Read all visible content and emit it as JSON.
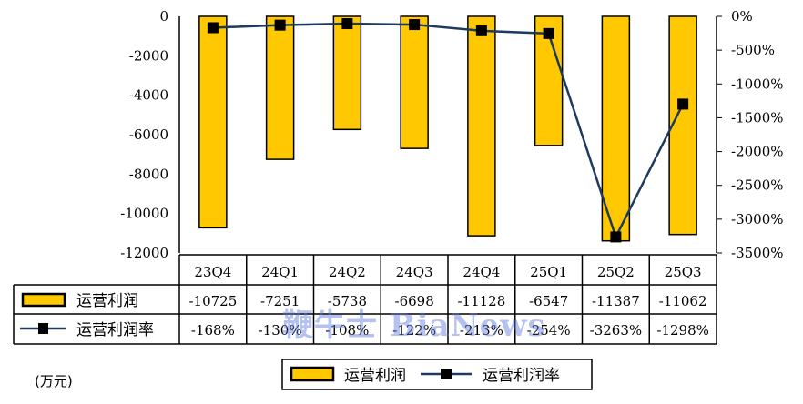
{
  "chart_data": {
    "type": "bar+line",
    "categories": [
      "23Q4",
      "24Q1",
      "24Q2",
      "24Q3",
      "24Q4",
      "25Q1",
      "25Q2",
      "25Q3"
    ],
    "series": [
      {
        "name": "运营利润",
        "type": "bar",
        "axis": "left",
        "color": "#FFC800",
        "values": [
          -10725,
          -7251,
          -5738,
          -6698,
          -11128,
          -6547,
          -11387,
          -11062
        ],
        "labels": [
          "-10725",
          "-7251",
          "-5738",
          "-6698",
          "-11128",
          "-6547",
          "-11387",
          "-11062"
        ]
      },
      {
        "name": "运营利润率",
        "type": "line",
        "axis": "right",
        "color": "#1F3A5F",
        "values": [
          -168,
          -130,
          -108,
          -122,
          -213,
          -254,
          -3263,
          -1298
        ],
        "labels": [
          "-168%",
          "-130%",
          "-108%",
          "-122%",
          "-213%",
          "-254%",
          "-3263%",
          "-1298%"
        ]
      }
    ],
    "y_left": {
      "ylim": [
        -12000,
        0
      ],
      "ticks": [
        "0",
        "-2000",
        "-4000",
        "-6000",
        "-8000",
        "-10000",
        "-12000"
      ]
    },
    "y_right": {
      "ylim": [
        -3500,
        0
      ],
      "ticks": [
        "0%",
        "-500%",
        "-1000%",
        "-1500%",
        "-2000%",
        "-2500%",
        "-3000%",
        "-3500%"
      ]
    },
    "unit_label": "(万元)",
    "legend": {
      "placement": "bottom",
      "items": [
        "运营利润",
        "运营利润率"
      ]
    },
    "data_table": true,
    "watermark": "鞭牛士 BiaNews"
  }
}
